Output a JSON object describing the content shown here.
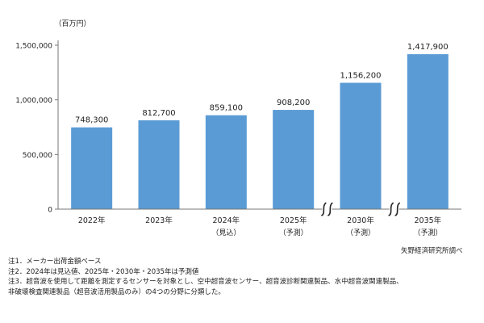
{
  "chart_data": {
    "type": "bar",
    "unit_label": "（百万円）",
    "categories": [
      "2022年",
      "2023年",
      "2024年",
      "2025年",
      "2030年",
      "2035年"
    ],
    "sublabels": [
      "",
      "",
      "（見込）",
      "（予測）",
      "（予測）",
      "（予測）"
    ],
    "values": [
      748300,
      812700,
      859100,
      908200,
      1156200,
      1417900
    ],
    "value_labels": [
      "748,300",
      "812,700",
      "859,100",
      "908,200",
      "1,156,200",
      "1,417,900"
    ],
    "ylim": [
      0,
      1500000
    ],
    "yticks": [
      0,
      500000,
      1000000,
      1500000
    ],
    "ytick_labels": [
      "0",
      "500,000",
      "1,000,000",
      "1,500,000"
    ],
    "axis_breaks_after_index": [
      3,
      4
    ],
    "bar_color": "#5b9bd5",
    "grid": false
  },
  "source": "矢野経済研究所調べ",
  "notes": [
    "注1．メーカー出荷金額ベース",
    "注2．2024年は見込値、2025年・2030年・2035年は予測値",
    "注3．超音波を使用して距離を測定するセンサーを対象とし、空中超音波センサー、超音波診断関連製品、水中超音波関連製品、",
    "非破壊検査関連製品（超音波活用製品のみ）の4つの分野に分類した。"
  ]
}
